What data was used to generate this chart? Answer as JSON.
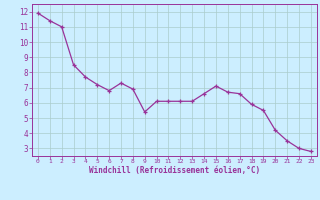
{
  "x": [
    0,
    1,
    2,
    3,
    4,
    5,
    6,
    7,
    8,
    9,
    10,
    11,
    12,
    13,
    14,
    15,
    16,
    17,
    18,
    19,
    20,
    21,
    22,
    23
  ],
  "y": [
    11.9,
    11.4,
    11.0,
    8.5,
    7.7,
    7.2,
    6.8,
    7.3,
    6.9,
    5.4,
    6.1,
    6.1,
    6.1,
    6.1,
    6.6,
    7.1,
    6.7,
    6.6,
    5.9,
    5.5,
    4.2,
    3.5,
    3.0,
    2.8
  ],
  "line_color": "#993399",
  "marker_color": "#993399",
  "bg_color": "#cceeff",
  "grid_color": "#aacccc",
  "axis_color": "#993399",
  "xlabel": "Windchill (Refroidissement éolien,°C)",
  "ylabel_ticks": [
    3,
    4,
    5,
    6,
    7,
    8,
    9,
    10,
    11,
    12
  ],
  "xlim": [
    -0.5,
    23.5
  ],
  "ylim": [
    2.5,
    12.5
  ],
  "xticks": [
    0,
    1,
    2,
    3,
    4,
    5,
    6,
    7,
    8,
    9,
    10,
    11,
    12,
    13,
    14,
    15,
    16,
    17,
    18,
    19,
    20,
    21,
    22,
    23
  ]
}
